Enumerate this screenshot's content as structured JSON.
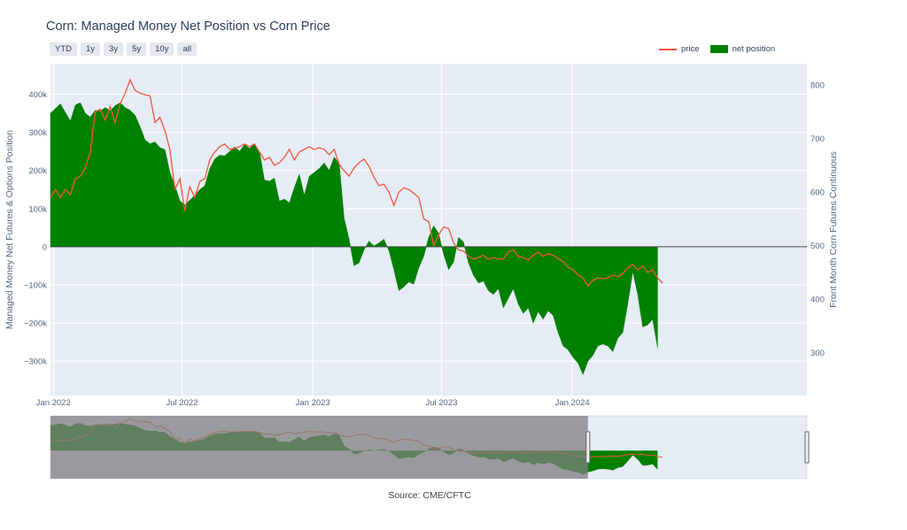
{
  "title": "Corn: Managed Money Net Position vs Corn Price",
  "range_buttons": [
    "YTD",
    "1y",
    "3y",
    "5y",
    "10y",
    "all"
  ],
  "legend": {
    "price": "price",
    "net": "net position"
  },
  "source": "Source: CME/CFTC",
  "colors": {
    "price": "#ef553b",
    "net": "#008000",
    "plot_bg": "#e5ecf6",
    "grid": "#ffffff",
    "dim": "#7f7f7f"
  },
  "chart_data": {
    "type": "area",
    "title": "Corn: Managed Money Net Position vs Corn Price",
    "y1label": "Managed Money Net Futures & Options Position",
    "y2label": "Front Month Corn Futures Continuous",
    "y1lim": [
      -390000,
      480000
    ],
    "y2lim": [
      220,
      840
    ],
    "y1ticks": [
      -300000,
      -200000,
      -100000,
      0,
      100000,
      200000,
      300000,
      400000
    ],
    "y1ticklabels": [
      "−300k",
      "−200k",
      "−100k",
      "0",
      "100k",
      "200k",
      "300k",
      "400k"
    ],
    "y2ticks": [
      300,
      400,
      500,
      600,
      700,
      800
    ],
    "y2ticklabels": [
      "300",
      "400",
      "500",
      "600",
      "700",
      "800"
    ],
    "xlim": [
      "2021-12-28",
      "2024-11-26"
    ],
    "xticks": [
      "2022-01-01",
      "2022-07-01",
      "2023-01-01",
      "2023-07-01",
      "2024-01-01"
    ],
    "xticklabels": [
      "Jan 2022",
      "Jul 2022",
      "Jan 2023",
      "Jul 2023",
      "Jan 2024"
    ],
    "net_position": [
      [
        "2021-12-28",
        350000
      ],
      [
        "2022-01-11",
        375000
      ],
      [
        "2022-01-18",
        352000
      ],
      [
        "2022-01-25",
        330000
      ],
      [
        "2022-02-01",
        372000
      ],
      [
        "2022-02-08",
        378000
      ],
      [
        "2022-02-15",
        350000
      ],
      [
        "2022-02-22",
        340000
      ],
      [
        "2022-03-01",
        358000
      ],
      [
        "2022-03-08",
        356000
      ],
      [
        "2022-03-15",
        365000
      ],
      [
        "2022-03-22",
        357000
      ],
      [
        "2022-03-29",
        370000
      ],
      [
        "2022-04-05",
        378000
      ],
      [
        "2022-04-12",
        365000
      ],
      [
        "2022-04-19",
        358000
      ],
      [
        "2022-04-26",
        345000
      ],
      [
        "2022-05-03",
        315000
      ],
      [
        "2022-05-10",
        280000
      ],
      [
        "2022-05-17",
        270000
      ],
      [
        "2022-05-24",
        275000
      ],
      [
        "2022-05-31",
        260000
      ],
      [
        "2022-06-07",
        255000
      ],
      [
        "2022-06-14",
        195000
      ],
      [
        "2022-06-21",
        160000
      ],
      [
        "2022-06-28",
        120000
      ],
      [
        "2022-07-05",
        110000
      ],
      [
        "2022-07-12",
        122000
      ],
      [
        "2022-07-19",
        135000
      ],
      [
        "2022-07-26",
        150000
      ],
      [
        "2022-08-02",
        160000
      ],
      [
        "2022-08-09",
        205000
      ],
      [
        "2022-08-16",
        230000
      ],
      [
        "2022-08-23",
        240000
      ],
      [
        "2022-08-30",
        238000
      ],
      [
        "2022-09-06",
        250000
      ],
      [
        "2022-09-13",
        262000
      ],
      [
        "2022-09-20",
        250000
      ],
      [
        "2022-09-27",
        268000
      ],
      [
        "2022-10-04",
        258000
      ],
      [
        "2022-10-11",
        270000
      ],
      [
        "2022-10-18",
        248000
      ],
      [
        "2022-10-25",
        175000
      ],
      [
        "2022-11-01",
        172000
      ],
      [
        "2022-11-08",
        180000
      ],
      [
        "2022-11-15",
        120000
      ],
      [
        "2022-11-22",
        125000
      ],
      [
        "2022-11-29",
        115000
      ],
      [
        "2022-12-06",
        155000
      ],
      [
        "2022-12-13",
        190000
      ],
      [
        "2022-12-20",
        135000
      ],
      [
        "2022-12-27",
        185000
      ],
      [
        "2023-01-03",
        195000
      ],
      [
        "2023-01-10",
        205000
      ],
      [
        "2023-01-17",
        220000
      ],
      [
        "2023-01-24",
        200000
      ],
      [
        "2023-01-31",
        235000
      ],
      [
        "2023-02-07",
        220000
      ],
      [
        "2023-02-14",
        75000
      ],
      [
        "2023-02-21",
        20000
      ],
      [
        "2023-02-28",
        -50000
      ],
      [
        "2023-03-07",
        -42000
      ],
      [
        "2023-03-14",
        -8000
      ],
      [
        "2023-03-21",
        15000
      ],
      [
        "2023-03-28",
        2000
      ],
      [
        "2023-04-04",
        10000
      ],
      [
        "2023-04-11",
        20000
      ],
      [
        "2023-04-18",
        -10000
      ],
      [
        "2023-04-25",
        -60000
      ],
      [
        "2023-05-02",
        -115000
      ],
      [
        "2023-05-09",
        -105000
      ],
      [
        "2023-05-16",
        -92000
      ],
      [
        "2023-05-23",
        -98000
      ],
      [
        "2023-05-30",
        -55000
      ],
      [
        "2023-06-06",
        -25000
      ],
      [
        "2023-06-13",
        25000
      ],
      [
        "2023-06-20",
        55000
      ],
      [
        "2023-06-27",
        35000
      ],
      [
        "2023-07-04",
        -20000
      ],
      [
        "2023-07-11",
        -60000
      ],
      [
        "2023-07-18",
        -40000
      ],
      [
        "2023-07-25",
        25000
      ],
      [
        "2023-08-01",
        12000
      ],
      [
        "2023-08-08",
        -42000
      ],
      [
        "2023-08-15",
        -75000
      ],
      [
        "2023-08-22",
        -95000
      ],
      [
        "2023-08-29",
        -90000
      ],
      [
        "2023-09-05",
        -115000
      ],
      [
        "2023-09-12",
        -125000
      ],
      [
        "2023-09-19",
        -110000
      ],
      [
        "2023-09-26",
        -160000
      ],
      [
        "2023-10-03",
        -135000
      ],
      [
        "2023-10-10",
        -110000
      ],
      [
        "2023-10-17",
        -150000
      ],
      [
        "2023-10-24",
        -175000
      ],
      [
        "2023-10-31",
        -160000
      ],
      [
        "2023-11-07",
        -200000
      ],
      [
        "2023-11-14",
        -170000
      ],
      [
        "2023-11-21",
        -190000
      ],
      [
        "2023-11-28",
        -168000
      ],
      [
        "2023-12-05",
        -180000
      ],
      [
        "2023-12-12",
        -225000
      ],
      [
        "2023-12-19",
        -260000
      ],
      [
        "2023-12-26",
        -270000
      ],
      [
        "2024-01-02",
        -290000
      ],
      [
        "2024-01-09",
        -305000
      ],
      [
        "2024-01-16",
        -335000
      ],
      [
        "2024-01-23",
        -300000
      ],
      [
        "2024-01-30",
        -285000
      ],
      [
        "2024-02-06",
        -260000
      ],
      [
        "2024-02-13",
        -255000
      ],
      [
        "2024-02-20",
        -260000
      ],
      [
        "2024-02-27",
        -275000
      ],
      [
        "2024-03-05",
        -240000
      ],
      [
        "2024-03-12",
        -225000
      ],
      [
        "2024-03-19",
        -150000
      ],
      [
        "2024-03-26",
        -65000
      ],
      [
        "2024-04-02",
        -125000
      ],
      [
        "2024-04-09",
        -210000
      ],
      [
        "2024-04-16",
        -205000
      ],
      [
        "2024-04-23",
        -190000
      ],
      [
        "2024-04-30",
        -265000
      ]
    ],
    "price": [
      [
        "2021-12-28",
        590
      ],
      [
        "2022-01-04",
        605
      ],
      [
        "2022-01-11",
        590
      ],
      [
        "2022-01-18",
        605
      ],
      [
        "2022-01-25",
        595
      ],
      [
        "2022-02-01",
        625
      ],
      [
        "2022-02-08",
        630
      ],
      [
        "2022-02-15",
        645
      ],
      [
        "2022-02-22",
        675
      ],
      [
        "2022-03-01",
        750
      ],
      [
        "2022-03-08",
        755
      ],
      [
        "2022-03-15",
        735
      ],
      [
        "2022-03-22",
        760
      ],
      [
        "2022-03-29",
        730
      ],
      [
        "2022-04-05",
        765
      ],
      [
        "2022-04-12",
        785
      ],
      [
        "2022-04-19",
        810
      ],
      [
        "2022-04-26",
        790
      ],
      [
        "2022-05-03",
        785
      ],
      [
        "2022-05-10",
        782
      ],
      [
        "2022-05-17",
        780
      ],
      [
        "2022-05-24",
        730
      ],
      [
        "2022-05-31",
        740
      ],
      [
        "2022-06-07",
        715
      ],
      [
        "2022-06-14",
        680
      ],
      [
        "2022-06-21",
        605
      ],
      [
        "2022-06-28",
        625
      ],
      [
        "2022-07-05",
        565
      ],
      [
        "2022-07-12",
        610
      ],
      [
        "2022-07-19",
        590
      ],
      [
        "2022-07-26",
        620
      ],
      [
        "2022-08-02",
        625
      ],
      [
        "2022-08-09",
        660
      ],
      [
        "2022-08-16",
        675
      ],
      [
        "2022-08-23",
        685
      ],
      [
        "2022-08-30",
        690
      ],
      [
        "2022-09-06",
        680
      ],
      [
        "2022-09-13",
        682
      ],
      [
        "2022-09-20",
        685
      ],
      [
        "2022-09-27",
        690
      ],
      [
        "2022-10-04",
        685
      ],
      [
        "2022-10-11",
        690
      ],
      [
        "2022-10-18",
        675
      ],
      [
        "2022-10-25",
        660
      ],
      [
        "2022-11-01",
        665
      ],
      [
        "2022-11-08",
        650
      ],
      [
        "2022-11-15",
        655
      ],
      [
        "2022-11-22",
        665
      ],
      [
        "2022-11-29",
        680
      ],
      [
        "2022-12-06",
        660
      ],
      [
        "2022-12-13",
        675
      ],
      [
        "2022-12-20",
        680
      ],
      [
        "2022-12-27",
        685
      ],
      [
        "2023-01-03",
        680
      ],
      [
        "2023-01-10",
        683
      ],
      [
        "2023-01-17",
        680
      ],
      [
        "2023-01-24",
        670
      ],
      [
        "2023-01-31",
        680
      ],
      [
        "2023-02-07",
        652
      ],
      [
        "2023-02-14",
        640
      ],
      [
        "2023-02-21",
        630
      ],
      [
        "2023-02-28",
        645
      ],
      [
        "2023-03-07",
        655
      ],
      [
        "2023-03-14",
        662
      ],
      [
        "2023-03-21",
        648
      ],
      [
        "2023-03-28",
        628
      ],
      [
        "2023-04-04",
        612
      ],
      [
        "2023-04-11",
        615
      ],
      [
        "2023-04-18",
        600
      ],
      [
        "2023-04-25",
        575
      ],
      [
        "2023-05-02",
        600
      ],
      [
        "2023-05-09",
        608
      ],
      [
        "2023-05-16",
        605
      ],
      [
        "2023-05-23",
        598
      ],
      [
        "2023-05-30",
        590
      ],
      [
        "2023-06-06",
        550
      ],
      [
        "2023-06-13",
        545
      ],
      [
        "2023-06-20",
        500
      ],
      [
        "2023-06-27",
        520
      ],
      [
        "2023-07-04",
        535
      ],
      [
        "2023-07-11",
        532
      ],
      [
        "2023-07-18",
        505
      ],
      [
        "2023-07-25",
        492
      ],
      [
        "2023-08-01",
        490
      ],
      [
        "2023-08-08",
        480
      ],
      [
        "2023-08-15",
        475
      ],
      [
        "2023-08-22",
        478
      ],
      [
        "2023-08-29",
        482
      ],
      [
        "2023-09-05",
        475
      ],
      [
        "2023-09-12",
        478
      ],
      [
        "2023-09-19",
        475
      ],
      [
        "2023-09-26",
        475
      ],
      [
        "2023-10-03",
        488
      ],
      [
        "2023-10-10",
        492
      ],
      [
        "2023-10-17",
        480
      ],
      [
        "2023-10-24",
        478
      ],
      [
        "2023-10-31",
        473
      ],
      [
        "2023-11-07",
        482
      ],
      [
        "2023-11-14",
        488
      ],
      [
        "2023-11-21",
        480
      ],
      [
        "2023-11-28",
        485
      ],
      [
        "2023-12-05",
        482
      ],
      [
        "2023-12-12",
        476
      ],
      [
        "2023-12-19",
        470
      ],
      [
        "2023-12-26",
        460
      ],
      [
        "2024-01-02",
        455
      ],
      [
        "2024-01-09",
        445
      ],
      [
        "2024-01-16",
        440
      ],
      [
        "2024-01-23",
        425
      ],
      [
        "2024-01-30",
        435
      ],
      [
        "2024-02-06",
        440
      ],
      [
        "2024-02-13",
        438
      ],
      [
        "2024-02-20",
        440
      ],
      [
        "2024-02-27",
        445
      ],
      [
        "2024-03-05",
        442
      ],
      [
        "2024-03-12",
        448
      ],
      [
        "2024-03-19",
        458
      ],
      [
        "2024-03-26",
        465
      ],
      [
        "2024-04-02",
        455
      ],
      [
        "2024-04-09",
        462
      ],
      [
        "2024-04-16",
        450
      ],
      [
        "2024-04-23",
        455
      ],
      [
        "2024-04-30",
        440
      ],
      [
        "2024-05-07",
        430
      ]
    ]
  }
}
